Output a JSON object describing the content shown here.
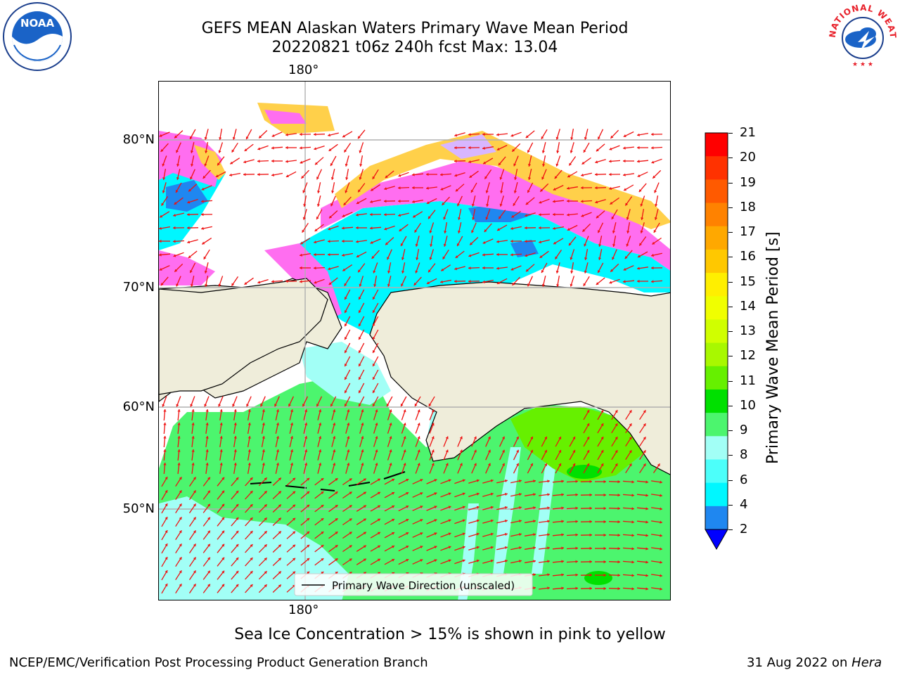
{
  "header": {
    "title": "GEFS MEAN Alaskan Waters Primary Wave Mean Period",
    "subtitle": "20220821 t06z 240h fcst   Max: 13.04"
  },
  "logos": {
    "left": "NOAA",
    "right": "NATIONAL WEATHER SERVICE"
  },
  "map": {
    "lon_label_top": "180°",
    "lon_label_bottom": "180°",
    "lat_labels": [
      "80°N",
      "70°N",
      "60°N",
      "50°N"
    ],
    "legend_label": "Primary Wave Direction (unscaled)",
    "colors": {
      "land": "#efedda",
      "ocean_green": "#4cf56e",
      "ocean_light_cyan": "#a2fff6",
      "ocean_cyan": "#00f7ff",
      "ocean_blue": "#1f87f0",
      "ice_pink": "#ff6ef0",
      "ice_yellow": "#ffd04a",
      "ice_light": "#d8b6ff",
      "arrow": "#ee1111",
      "grid": "#b0b0b0"
    }
  },
  "colorbar": {
    "label": "Primary Wave Mean Period [s]",
    "ticks": [
      "21",
      "20",
      "19",
      "18",
      "17",
      "16",
      "15",
      "14",
      "13",
      "12",
      "11",
      "10",
      "9",
      "8",
      "6",
      "4",
      "2"
    ],
    "colors": [
      "#ff0000",
      "#ff3200",
      "#ff5a00",
      "#ff8200",
      "#ffa800",
      "#ffc800",
      "#ffef00",
      "#f0ff00",
      "#d0ff00",
      "#a8f800",
      "#66f000",
      "#00e000",
      "#4cf56e",
      "#a2fff6",
      "#4cfffa",
      "#00f7ff",
      "#1f87f0"
    ],
    "extend_color": "#0000ff"
  },
  "footer": {
    "ice_note": "Sea Ice Concentration > 15% is shown in pink to yellow",
    "credit": "NCEP/EMC/Verification Post Processing Product Generation Branch",
    "date": "31 Aug 2022 on ",
    "machine": "Hera"
  }
}
